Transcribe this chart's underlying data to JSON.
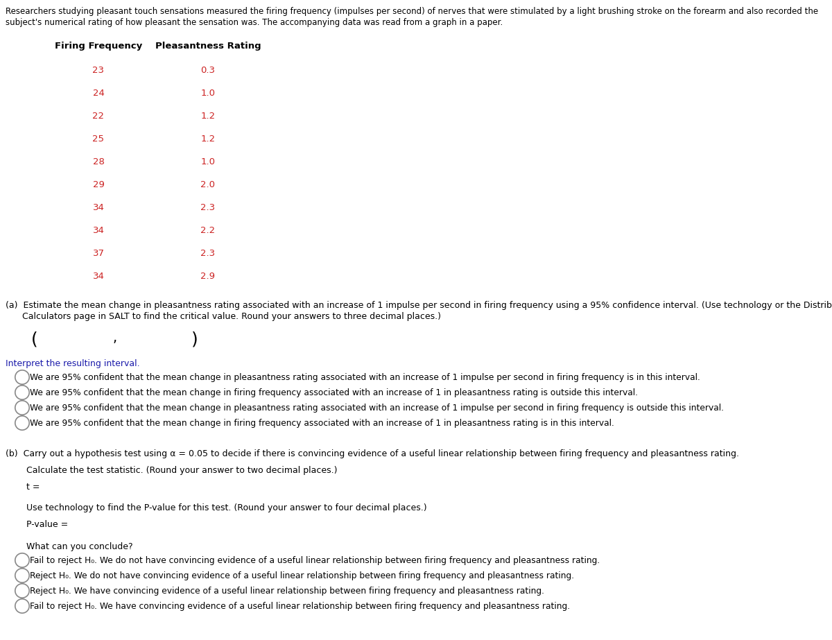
{
  "intro_text_line1": "Researchers studying pleasant touch sensations measured the firing frequency (impulses per second) of nerves that were stimulated by a light brushing stroke on the forearm and also recorded the",
  "intro_text_line2": "subject's numerical rating of how pleasant the sensation was. The accompanying data was read from a graph in a paper.",
  "table_headers": [
    "Firing Frequency",
    "Pleasantness Rating"
  ],
  "firing_freq": [
    23,
    24,
    22,
    25,
    28,
    29,
    34,
    34,
    37,
    34
  ],
  "pleasantness": [
    "0.3",
    "1.0",
    "1.2",
    "1.2",
    "1.0",
    "2.0",
    "2.3",
    "2.2",
    "2.3",
    "2.9"
  ],
  "header_bg": "#c8c8c8",
  "header_text_color": "#000000",
  "data_text_color": "#cc2222",
  "table_border_color": "#888888",
  "body_text_color": "#000000",
  "blue_text_color": "#1a1aaa",
  "part_a_line1": "(a)  Estimate the mean change in pleasantness rating associated with an increase of 1 impulse per second in firing frequency using a 95% confidence interval. (Use technology or the Distribution",
  "part_a_line2": "      Calculators page in SALT to find the critical value. Round your answers to three decimal places.)",
  "interpret_label": "Interpret the resulting interval.",
  "radio_options_a": [
    "We are 95% confident that the mean change in pleasantness rating associated with an increase of 1 impulse per second in firing frequency is in this interval.",
    "We are 95% confident that the mean change in firing frequency associated with an increase of 1 in pleasantness rating is outside this interval.",
    "We are 95% confident that the mean change in pleasantness rating associated with an increase of 1 impulse per second in firing frequency is outside this interval.",
    "We are 95% confident that the mean change in firing frequency associated with an increase of 1 in pleasantness rating is in this interval."
  ],
  "part_b_text": "(b)  Carry out a hypothesis test using α = 0.05 to decide if there is convincing evidence of a useful linear relationship between firing frequency and pleasantness rating.",
  "calc_stat_text": "Calculate the test statistic. (Round your answer to two decimal places.)",
  "t_label": "t =",
  "pvalue_intro": "Use technology to find the P-value for this test. (Round your answer to four decimal places.)",
  "pvalue_label": "P-value =",
  "conclude_label": "What can you conclude?",
  "radio_options_b": [
    "Fail to reject H₀. We do not have convincing evidence of a useful linear relationship between firing frequency and pleasantness rating.",
    "Reject H₀. We do not have convincing evidence of a useful linear relationship between firing frequency and pleasantness rating.",
    "Reject H₀. We have convincing evidence of a useful linear relationship between firing frequency and pleasantness rating.",
    "Fail to reject H₀. We have convincing evidence of a useful linear relationship between firing frequency and pleasantness rating."
  ],
  "fig_width": 12.0,
  "fig_height": 9.23,
  "dpi": 100
}
